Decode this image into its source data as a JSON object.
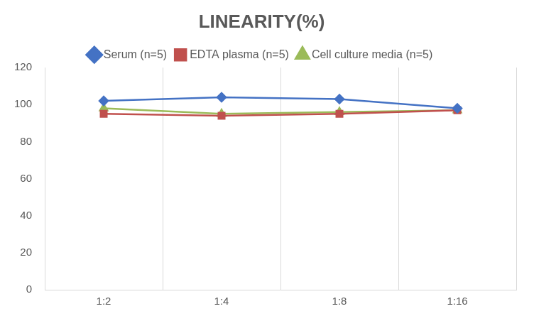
{
  "chart_data": {
    "type": "line",
    "title": "LINEARITY(%)",
    "categories": [
      "1:2",
      "1:4",
      "1:8",
      "1:16"
    ],
    "series": [
      {
        "name": "Serum (n=5)",
        "color": "#4472c4",
        "marker": "diamond",
        "values": [
          102,
          104,
          103,
          98
        ]
      },
      {
        "name": "EDTA plasma (n=5)",
        "color": "#c0504d",
        "marker": "square",
        "values": [
          95,
          94,
          95,
          97
        ]
      },
      {
        "name": "Cell culture media (n=5)",
        "color": "#9bbb59",
        "marker": "triangle",
        "values": [
          98,
          95,
          96,
          97
        ]
      }
    ],
    "ylim": [
      0,
      120
    ],
    "yticks": [
      0,
      20,
      40,
      60,
      80,
      100,
      120
    ],
    "grid": true,
    "legend": "top"
  }
}
